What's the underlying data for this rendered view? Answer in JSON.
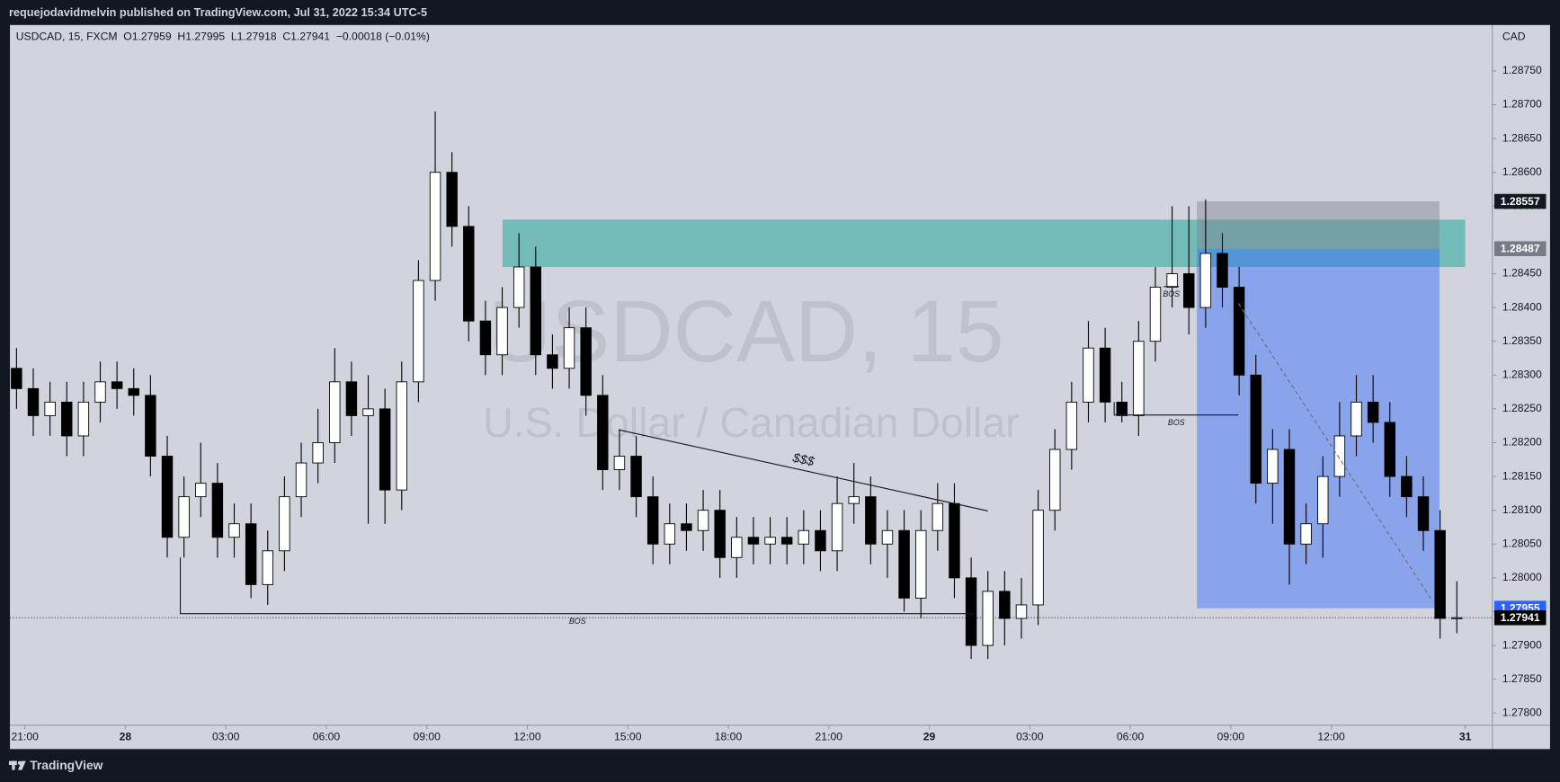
{
  "header": {
    "publisher": "requejodavidmelvin published on TradingView.com, Jul 31, 2022 15:34 UTC-5"
  },
  "footer": {
    "brand": "TradingView"
  },
  "chart_data": {
    "type": "candlestick",
    "symbol_info": "USDCAD, 15, FXCM  O1.27959  H1.27995  L1.27918  C1.27941  −0.00018 (−0.01%)",
    "currency": "CAD",
    "watermark": {
      "title": "USDCAD, 15",
      "subtitle": "U.S. Dollar / Canadian Dollar"
    },
    "up_color": "#ffffff",
    "down_color": "#000000",
    "wick_color": "#000000",
    "x": [
      20.75,
      21.25,
      21.75,
      22.25,
      22.75,
      23.25,
      23.75,
      24.25,
      24.75,
      25.25,
      25.75,
      26.25,
      26.75,
      27.25,
      27.75,
      28.25,
      28.75,
      29.25,
      29.75,
      30.25,
      30.75,
      31.25,
      31.75,
      32.25,
      32.75,
      33.25,
      33.75,
      34.25,
      34.75,
      35.25,
      35.75,
      36.25,
      36.75,
      37.25,
      37.75,
      38.25,
      38.75,
      39.25,
      39.75,
      40.25,
      40.75,
      41.25,
      41.75,
      42.25,
      42.75,
      43.25,
      43.75,
      44.25,
      44.75,
      45.25,
      45.75,
      46.25,
      46.75,
      47.25,
      47.75,
      48.25,
      48.75,
      49.25,
      49.75,
      50.25,
      50.75,
      51.25,
      51.75,
      52.25,
      52.75,
      53.25,
      53.75,
      54.25,
      54.75,
      55.25,
      55.75,
      56.25,
      56.75,
      57.25,
      57.75,
      58.25,
      58.75,
      59.25,
      59.75,
      60.25,
      60.75,
      61.25,
      61.75,
      62.25,
      62.75,
      63.25,
      63.75
    ],
    "open": [
      1.2831,
      1.2828,
      1.2824,
      1.2826,
      1.2821,
      1.2826,
      1.2829,
      1.2828,
      1.2827,
      1.2818,
      1.2806,
      1.2812,
      1.2814,
      1.2806,
      1.2808,
      1.2799,
      1.2804,
      1.2812,
      1.2817,
      1.282,
      1.2829,
      1.2824,
      1.2825,
      1.2813,
      1.2829,
      1.2844,
      1.286,
      1.2852,
      1.2838,
      1.2833,
      1.284,
      1.2846,
      1.2833,
      1.2831,
      1.2837,
      1.2827,
      1.2816,
      1.2818,
      1.2812,
      1.2805,
      1.2808,
      1.2807,
      1.281,
      1.2803,
      1.2806,
      1.2805,
      1.2806,
      1.2805,
      1.2807,
      1.2804,
      1.2811,
      1.2812,
      1.2805,
      1.2807,
      1.2797,
      1.2807,
      1.2811,
      1.28,
      1.279,
      1.2798,
      1.2794,
      1.2796,
      1.281,
      1.2819,
      1.2826,
      1.2834,
      1.2826,
      1.2824,
      1.2835,
      1.2843,
      1.2845,
      1.284,
      1.2848,
      1.2843,
      1.283,
      1.2814,
      1.2819,
      1.2805,
      1.2808,
      1.2815,
      1.2821,
      1.2826,
      1.2823,
      1.2815,
      1.2812,
      1.2807,
      1.2794
    ],
    "high": [
      1.2834,
      1.2831,
      1.2829,
      1.2829,
      1.2829,
      1.2832,
      1.2832,
      1.2831,
      1.283,
      1.2821,
      1.2815,
      1.282,
      1.2817,
      1.2811,
      1.2811,
      1.2807,
      1.2815,
      1.282,
      1.2825,
      1.2834,
      1.2832,
      1.283,
      1.2828,
      1.2832,
      1.2847,
      1.2869,
      1.2863,
      1.2855,
      1.2841,
      1.2843,
      1.2851,
      1.2849,
      1.2836,
      1.284,
      1.284,
      1.283,
      1.2822,
      1.2821,
      1.2815,
      1.2811,
      1.2811,
      1.2813,
      1.2813,
      1.2809,
      1.2809,
      1.2809,
      1.2809,
      1.281,
      1.281,
      1.2815,
      1.2817,
      1.2815,
      1.281,
      1.281,
      1.281,
      1.2814,
      1.2814,
      1.2803,
      1.2801,
      1.2801,
      1.28,
      1.2813,
      1.2822,
      1.2829,
      1.2838,
      1.2837,
      1.2829,
      1.2838,
      1.2846,
      1.2855,
      1.2855,
      1.2856,
      1.2851,
      1.2846,
      1.2833,
      1.2822,
      1.2822,
      1.2811,
      1.2818,
      1.2826,
      1.283,
      1.283,
      1.2826,
      1.2818,
      1.2815,
      1.281,
      1.27995
    ],
    "low": [
      1.2825,
      1.2821,
      1.2821,
      1.2818,
      1.2818,
      1.2823,
      1.2825,
      1.2824,
      1.2815,
      1.2803,
      1.2803,
      1.2809,
      1.2803,
      1.2803,
      1.2797,
      1.2796,
      1.2801,
      1.2809,
      1.2814,
      1.2817,
      1.2821,
      1.2808,
      1.2808,
      1.281,
      1.2826,
      1.2841,
      1.2849,
      1.2835,
      1.283,
      1.283,
      1.2837,
      1.283,
      1.2828,
      1.2828,
      1.2824,
      1.2813,
      1.2813,
      1.2809,
      1.2802,
      1.2802,
      1.2804,
      1.2804,
      1.28,
      1.28,
      1.2802,
      1.2802,
      1.2802,
      1.2802,
      1.2801,
      1.2801,
      1.2808,
      1.2802,
      1.28,
      1.2795,
      1.2794,
      1.2804,
      1.2797,
      1.2788,
      1.2788,
      1.279,
      1.2791,
      1.2793,
      1.2807,
      1.2816,
      1.2823,
      1.2823,
      1.2823,
      1.2821,
      1.2832,
      1.284,
      1.2836,
      1.2837,
      1.284,
      1.2827,
      1.2811,
      1.2808,
      1.2799,
      1.2802,
      1.2803,
      1.2812,
      1.2818,
      1.282,
      1.2812,
      1.2809,
      1.2804,
      1.2791,
      1.27918
    ],
    "close": [
      1.2828,
      1.2824,
      1.2826,
      1.2821,
      1.2826,
      1.2829,
      1.2828,
      1.2827,
      1.2818,
      1.2806,
      1.2812,
      1.2814,
      1.2806,
      1.2808,
      1.2799,
      1.2804,
      1.2812,
      1.2817,
      1.282,
      1.2829,
      1.2824,
      1.2825,
      1.2813,
      1.2829,
      1.2844,
      1.286,
      1.2852,
      1.2838,
      1.2833,
      1.284,
      1.2846,
      1.2833,
      1.2831,
      1.2837,
      1.2827,
      1.2816,
      1.2818,
      1.2812,
      1.2805,
      1.2808,
      1.2807,
      1.281,
      1.2803,
      1.2806,
      1.2805,
      1.2806,
      1.2805,
      1.2807,
      1.2804,
      1.2811,
      1.2812,
      1.2805,
      1.2807,
      1.2797,
      1.2807,
      1.2811,
      1.28,
      1.279,
      1.2798,
      1.2794,
      1.2796,
      1.281,
      1.2819,
      1.2826,
      1.2834,
      1.2826,
      1.2824,
      1.2835,
      1.2843,
      1.2845,
      1.284,
      1.2848,
      1.2843,
      1.283,
      1.2814,
      1.2819,
      1.2805,
      1.2808,
      1.2815,
      1.2821,
      1.2826,
      1.2823,
      1.2815,
      1.2812,
      1.2807,
      1.2794,
      1.27941
    ],
    "xlim": [
      20.554,
      64.81
    ],
    "ylim": [
      1.27782,
      1.28818
    ],
    "xticks": [
      {
        "value": 21,
        "label": "21:00"
      },
      {
        "value": 24,
        "label": "28"
      },
      {
        "value": 27,
        "label": "03:00"
      },
      {
        "value": 30,
        "label": "06:00"
      },
      {
        "value": 33,
        "label": "09:00"
      },
      {
        "value": 36,
        "label": "12:00"
      },
      {
        "value": 39,
        "label": "15:00"
      },
      {
        "value": 42,
        "label": "18:00"
      },
      {
        "value": 45,
        "label": "21:00"
      },
      {
        "value": 48,
        "label": "29"
      },
      {
        "value": 51,
        "label": "03:00"
      },
      {
        "value": 54,
        "label": "06:00"
      },
      {
        "value": 57,
        "label": "09:00"
      },
      {
        "value": 60,
        "label": "12:00"
      },
      {
        "value": 64,
        "label": "31"
      }
    ],
    "yticks": [
      {
        "value": 1.278,
        "label": "1.27800"
      },
      {
        "value": 1.2785,
        "label": "1.27850"
      },
      {
        "value": 1.279,
        "label": "1.27900"
      },
      {
        "value": 1.2795,
        "label": "1.27950"
      },
      {
        "value": 1.28,
        "label": "1.28000"
      },
      {
        "value": 1.2805,
        "label": "1.28050"
      },
      {
        "value": 1.281,
        "label": "1.28100"
      },
      {
        "value": 1.2815,
        "label": "1.28150"
      },
      {
        "value": 1.282,
        "label": "1.28200"
      },
      {
        "value": 1.2825,
        "label": "1.28250"
      },
      {
        "value": 1.283,
        "label": "1.28300"
      },
      {
        "value": 1.2835,
        "label": "1.28350"
      },
      {
        "value": 1.284,
        "label": "1.28400"
      },
      {
        "value": 1.2845,
        "label": "1.28450"
      },
      {
        "value": 1.2855,
        "label": "1.28550"
      },
      {
        "value": 1.286,
        "label": "1.28600"
      },
      {
        "value": 1.2865,
        "label": "1.28650"
      },
      {
        "value": 1.287,
        "label": "1.28700"
      },
      {
        "value": 1.2875,
        "label": "1.28750"
      }
    ],
    "zones": [
      {
        "x": [
          35.26,
          64.0
        ],
        "y": [
          1.2846,
          1.2853
        ],
        "color": "rgba(38,166,154,0.55)"
      },
      {
        "x": [
          55.99,
          63.23
        ],
        "y": [
          1.28487,
          1.28557
        ],
        "color": "rgba(120,123,134,0.4)"
      },
      {
        "x": [
          55.99,
          63.23
        ],
        "y": [
          1.27955,
          1.28487
        ],
        "color": "rgba(41,98,255,0.42)"
      }
    ],
    "drawings": [
      {
        "label": "BOS",
        "label_position": "below",
        "dashed": false,
        "x": [
          25.64,
          25.64,
          49.35
        ],
        "y": [
          1.2803,
          1.27947,
          1.27947
        ]
      },
      {
        "label": "BOS",
        "label_position": "below",
        "dashed": false,
        "x": [
          53.52,
          53.52,
          57.23
        ],
        "y": [
          1.2826,
          1.28241,
          1.28241
        ]
      },
      {
        "label": "BOS",
        "label_position": "below",
        "dashed": false,
        "x": [
          55.0,
          55.45
        ],
        "y": [
          1.28431,
          1.28431
        ]
      },
      {
        "label": "$$$",
        "label_position": "above",
        "dashed": false,
        "x": [
          38.73,
          49.75
        ],
        "y": [
          1.28219,
          1.28099
        ]
      },
      {
        "dashed": true,
        "x": [
          57.23,
          63.03
        ],
        "y": [
          1.28406,
          1.27965
        ]
      }
    ],
    "price_labels": [
      {
        "value": 1.28557,
        "label": "1.28557",
        "color": "#131722",
        "dotted_line": false
      },
      {
        "value": 1.28487,
        "label": "1.28487",
        "color": "#787b86",
        "dotted_line": false
      },
      {
        "value": 1.27955,
        "label": "1.27955",
        "color": "#2962ff",
        "dotted_line": false
      },
      {
        "value": 1.27941,
        "label": "1.27941",
        "color": "#000000",
        "dotted_line": true
      }
    ]
  }
}
